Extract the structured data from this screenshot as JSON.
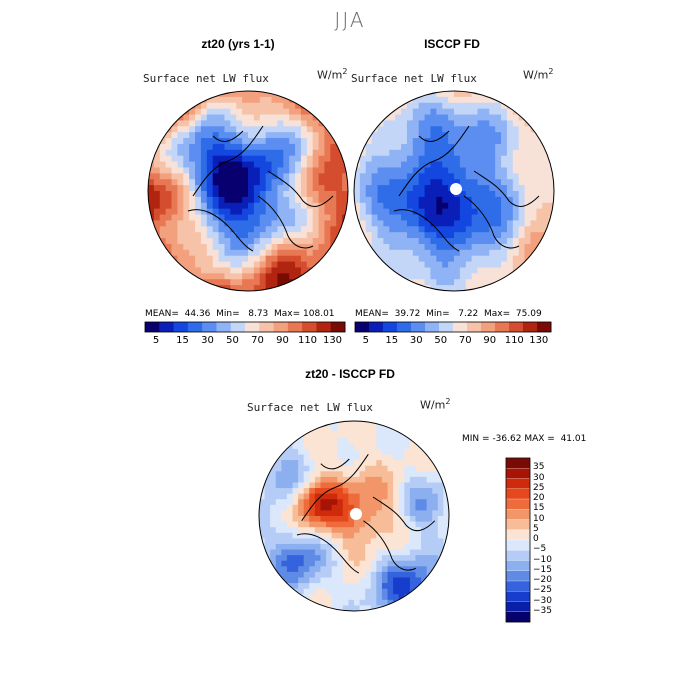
{
  "figure": {
    "season": "JJA"
  },
  "chart_data": [
    {
      "type": "heatmap",
      "projection": "north-polar-stereographic",
      "title": "zt20 (yrs 1-1)",
      "variable": "Surface net LW flux",
      "units": "W/m",
      "units_exp": "2",
      "stats": {
        "mean_label": "MEAN=",
        "mean": "44.36",
        "min_label": "Min=",
        "min": "8.73",
        "max_label": "Max=",
        "max": "108.01"
      },
      "colorbar": {
        "ticks": [
          "5",
          "15",
          "30",
          "50",
          "70",
          "90",
          "110",
          "130"
        ]
      },
      "anomaly_pattern": "model"
    },
    {
      "type": "heatmap",
      "projection": "north-polar-stereographic",
      "title": "ISCCP FD",
      "variable": "Surface net LW flux",
      "units": "W/m",
      "units_exp": "2",
      "stats": {
        "mean_label": "MEAN=",
        "mean": "39.72",
        "min_label": "Min=",
        "min": "7.22",
        "max_label": "Max=",
        "max": "75.09"
      },
      "colorbar": {
        "ticks": [
          "5",
          "15",
          "30",
          "50",
          "70",
          "90",
          "110",
          "130"
        ]
      },
      "anomaly_pattern": "obs"
    },
    {
      "type": "heatmap",
      "projection": "north-polar-stereographic",
      "title": "zt20 - ISCCP FD",
      "variable": "Surface net LW flux",
      "units": "W/m",
      "units_exp": "2",
      "stats": {
        "min_label": "MIN =",
        "min": "-36.62",
        "max_label": "MAX =",
        "max": "41.01"
      },
      "colorbar": {
        "ticks": [
          "35",
          "30",
          "25",
          "20",
          "15",
          "10",
          "5",
          "0",
          "−5",
          "−10",
          "−15",
          "−20",
          "−25",
          "−30",
          "−35"
        ]
      },
      "anomaly_pattern": "diff"
    }
  ],
  "colors": {
    "abs_scale": [
      "#08006e",
      "#0a1fb8",
      "#1446e0",
      "#2e6ce8",
      "#5b8ef0",
      "#8fb3f5",
      "#c3d6f8",
      "#f8e2d8",
      "#f6c2a8",
      "#f2a07e",
      "#e87854",
      "#d44d2e",
      "#b02410",
      "#7a0a04"
    ],
    "diff_scale": [
      "#7a0a04",
      "#a71406",
      "#cf2a0c",
      "#e5481c",
      "#ee6c3c",
      "#f29568",
      "#f6bd98",
      "#fbe4d4",
      "#dbe8fb",
      "#b5cdf6",
      "#8cafef",
      "#5f8be6",
      "#3563dd",
      "#163dcc",
      "#0a1fa8",
      "#06006c"
    ],
    "coast": "#000000"
  }
}
